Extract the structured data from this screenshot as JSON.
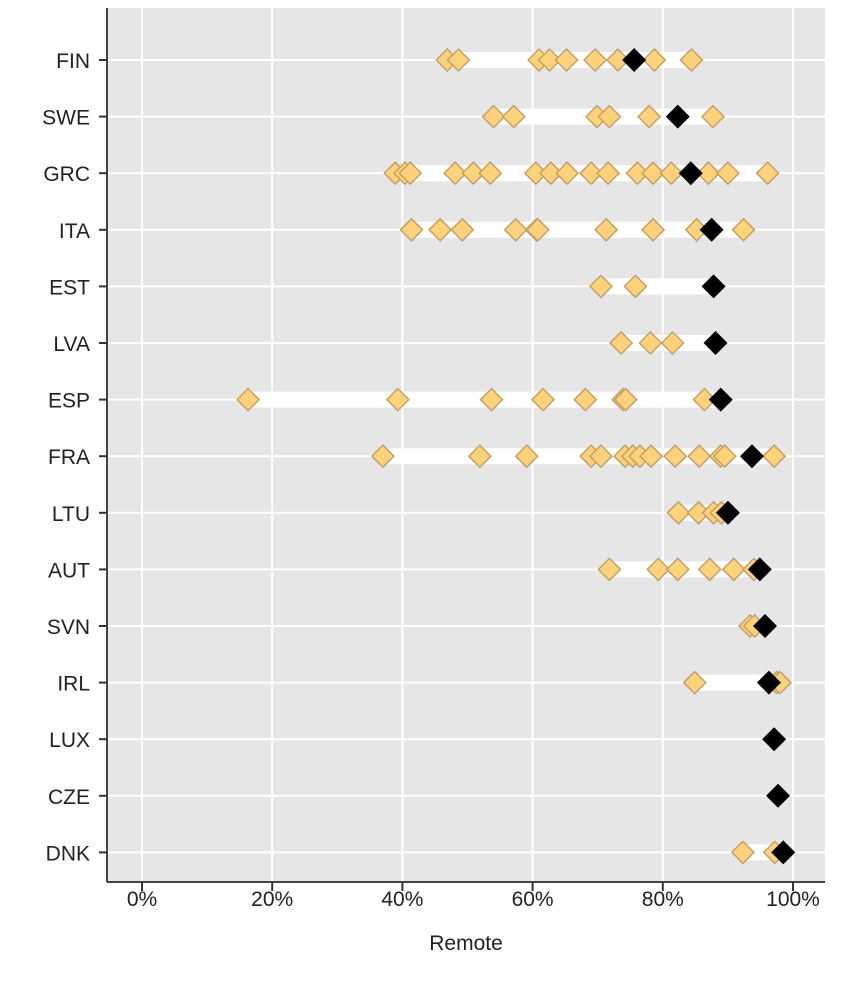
{
  "chart_data": {
    "type": "scatter",
    "title": "",
    "xlabel": "Remote",
    "ylabel": "",
    "xlim": [
      0,
      100
    ],
    "x_ticks": [
      "0%",
      "20%",
      "40%",
      "60%",
      "80%",
      "100%"
    ],
    "x_tick_values": [
      0,
      20,
      40,
      60,
      80,
      100
    ],
    "grid": true,
    "legend": "none",
    "colors": {
      "panel": "#e6e6e6",
      "grid": "#ffffff",
      "point_fill": "#fdd27a",
      "point_stroke": "#c3a168",
      "highlight": "#000000"
    },
    "categories": [
      "FIN",
      "SWE",
      "GRC",
      "ITA",
      "EST",
      "LVA",
      "ESP",
      "FRA",
      "LTU",
      "AUT",
      "SVN",
      "IRL",
      "LUX",
      "CZE",
      "DNK"
    ],
    "rows": [
      {
        "country": "FIN",
        "points": [
          46.9,
          48.6,
          61.0,
          62.6,
          65.2,
          69.6,
          73.1,
          78.7,
          84.4
        ],
        "highlight": 75.6
      },
      {
        "country": "SWE",
        "points": [
          54.0,
          57.1,
          69.9,
          71.8,
          77.9,
          87.7
        ],
        "highlight": 82.3
      },
      {
        "country": "GRC",
        "points": [
          38.9,
          40.4,
          41.2,
          48.1,
          50.9,
          53.5,
          60.5,
          62.8,
          65.3,
          69.0,
          71.6,
          76.1,
          78.5,
          81.3,
          87.0,
          90.0,
          96.1
        ],
        "highlight": 84.3
      },
      {
        "country": "ITA",
        "points": [
          41.4,
          45.8,
          49.2,
          57.4,
          60.6,
          60.8,
          71.3,
          78.5,
          85.2,
          92.4
        ],
        "highlight": 87.5
      },
      {
        "country": "EST",
        "points": [
          70.5,
          75.8
        ],
        "highlight": 87.8
      },
      {
        "country": "LVA",
        "points": [
          73.6,
          78.1,
          81.5
        ],
        "highlight": 88.1
      },
      {
        "country": "ESP",
        "points": [
          16.3,
          39.3,
          53.7,
          61.6,
          68.1,
          73.9,
          74.3,
          86.4
        ],
        "highlight": 88.9
      },
      {
        "country": "FRA",
        "points": [
          37.0,
          51.9,
          59.1,
          69.0,
          70.5,
          74.2,
          75.4,
          76.5,
          78.2,
          81.9,
          85.6,
          88.9,
          89.5,
          97.1
        ],
        "highlight": 93.7
      },
      {
        "country": "LTU",
        "points": [
          82.4,
          85.5,
          87.8,
          89.0
        ],
        "highlight": 90.0
      },
      {
        "country": "AUT",
        "points": [
          71.8,
          79.3,
          82.3,
          87.2,
          90.9,
          94.0
        ],
        "highlight": 94.9
      },
      {
        "country": "SVN",
        "points": [
          93.4,
          94.1
        ],
        "highlight": 95.7
      },
      {
        "country": "IRL",
        "points": [
          84.9,
          97.5,
          98.0
        ],
        "highlight": 96.3
      },
      {
        "country": "LUX",
        "points": [],
        "highlight": 97.1
      },
      {
        "country": "CZE",
        "points": [],
        "highlight": 97.7
      },
      {
        "country": "DNK",
        "points": [
          92.3,
          97.2
        ],
        "highlight": 98.5
      }
    ]
  }
}
